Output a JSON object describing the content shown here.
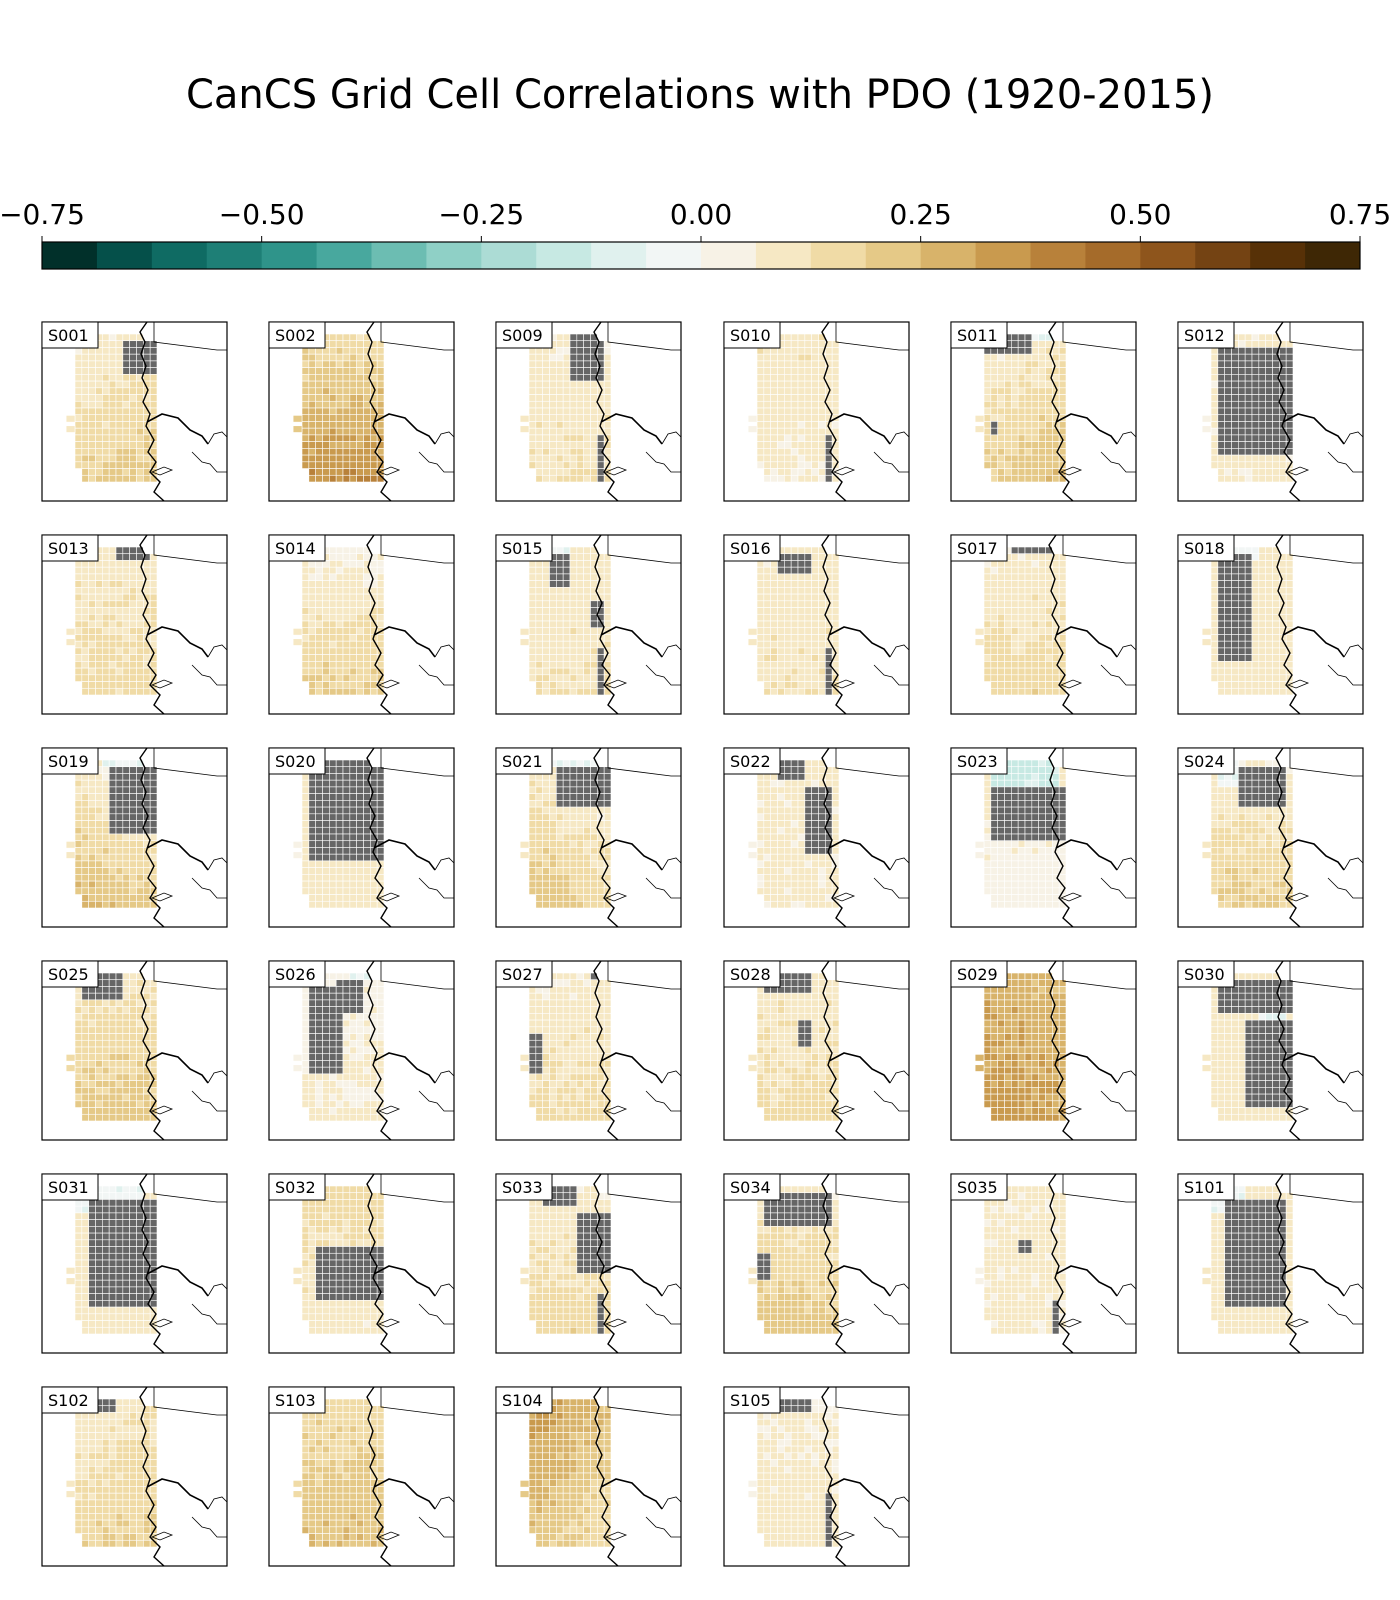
{
  "chart_data": {
    "type": "heatmap",
    "title": "CanCS Grid Cell Correlations with PDO (1920-2015)",
    "colorbar": {
      "ticks": [
        "−0.75",
        "−0.50",
        "−0.25",
        "0.00",
        "0.25",
        "0.50",
        "0.75"
      ],
      "range": [
        -0.75,
        0.75
      ],
      "colors": [
        "#01302a",
        "#05504a",
        "#0f6b63",
        "#1e7f76",
        "#2f948a",
        "#48a89e",
        "#6cbdb2",
        "#8fd0c6",
        "#acdcd5",
        "#c7e9e3",
        "#e0f1ee",
        "#f2f6f5",
        "#f7f2e6",
        "#f6e8c4",
        "#f0dba6",
        "#e5c987",
        "#d8b36a",
        "#c99a4e",
        "#b8813a",
        "#a56b2a",
        "#8e551c",
        "#744313",
        "#573107",
        "#3e2705"
      ],
      "not_significant_color": "#666666"
    },
    "panels": [
      {
        "label": "S001",
        "mean": 0.14,
        "lat_grad": 0.06,
        "lon_grad": 0.02,
        "masks": [
          [
            0.8,
            0.85,
            0.22,
            0.12
          ]
        ]
      },
      {
        "label": "S002",
        "mean": 0.26,
        "lat_grad": 0.12,
        "lon_grad": 0.0,
        "masks": []
      },
      {
        "label": "S009",
        "mean": 0.1,
        "lat_grad": 0.03,
        "lon_grad": 0.0,
        "masks": [
          [
            0.72,
            0.87,
            0.22,
            0.2
          ],
          [
            0.88,
            0.12,
            0.05,
            0.18
          ]
        ]
      },
      {
        "label": "S010",
        "mean": 0.09,
        "lat_grad": -0.02,
        "lon_grad": 0.0,
        "masks": [
          [
            0.88,
            0.12,
            0.05,
            0.18
          ]
        ]
      },
      {
        "label": "S011",
        "mean": 0.15,
        "lat_grad": 0.08,
        "lon_grad": 0.03,
        "masks": [
          [
            0.3,
            0.92,
            0.3,
            0.06
          ],
          [
            0.1,
            0.35,
            0.05,
            0.05
          ]
        ],
        "neg": [
          [
            0.55,
            0.98,
            0.35,
            0.04,
            -0.06
          ]
        ]
      },
      {
        "label": "S012",
        "mean": 0.08,
        "lat_grad": 0.0,
        "lon_grad": 0.0,
        "masks": [
          [
            0.55,
            0.55,
            0.45,
            0.35
          ]
        ]
      },
      {
        "label": "S013",
        "mean": 0.12,
        "lat_grad": 0.03,
        "lon_grad": 0.0,
        "masks": [
          [
            0.7,
            0.97,
            0.18,
            0.04
          ]
        ]
      },
      {
        "label": "S014",
        "mean": 0.12,
        "lat_grad": 0.08,
        "lon_grad": 0.0,
        "masks": []
      },
      {
        "label": "S015",
        "mean": 0.1,
        "lat_grad": 0.02,
        "lon_grad": 0.0,
        "masks": [
          [
            0.35,
            0.85,
            0.12,
            0.1
          ],
          [
            0.85,
            0.55,
            0.1,
            0.08
          ],
          [
            0.88,
            0.12,
            0.05,
            0.18
          ]
        ],
        "neg": [
          [
            0.35,
            0.98,
            0.12,
            0.04,
            -0.05
          ]
        ]
      },
      {
        "label": "S016",
        "mean": 0.1,
        "lat_grad": 0.02,
        "lon_grad": 0.0,
        "masks": [
          [
            0.45,
            0.9,
            0.2,
            0.06
          ],
          [
            0.88,
            0.12,
            0.05,
            0.18
          ]
        ]
      },
      {
        "label": "S017",
        "mean": 0.12,
        "lat_grad": 0.05,
        "lon_grad": 0.0,
        "masks": [
          [
            0.6,
            0.97,
            0.3,
            0.03
          ]
        ]
      },
      {
        "label": "S018",
        "mean": 0.1,
        "lat_grad": 0.0,
        "lon_grad": 0.0,
        "masks": [
          [
            0.3,
            0.6,
            0.2,
            0.35
          ]
        ],
        "neg": [
          [
            0.3,
            0.98,
            0.25,
            0.05,
            -0.05
          ]
        ]
      },
      {
        "label": "S019",
        "mean": 0.14,
        "lat_grad": 0.1,
        "lon_grad": -0.04,
        "masks": [
          [
            0.75,
            0.72,
            0.35,
            0.22
          ]
        ],
        "neg": [
          [
            0.6,
            0.98,
            0.3,
            0.04,
            -0.05
          ]
        ]
      },
      {
        "label": "S020",
        "mean": 0.09,
        "lat_grad": 0.0,
        "lon_grad": 0.0,
        "masks": [
          [
            0.55,
            0.68,
            0.45,
            0.35
          ]
        ]
      },
      {
        "label": "S021",
        "mean": 0.13,
        "lat_grad": 0.08,
        "lon_grad": -0.04,
        "masks": [
          [
            0.75,
            0.82,
            0.4,
            0.14
          ]
        ],
        "neg": [
          [
            0.5,
            0.98,
            0.45,
            0.04,
            -0.05
          ]
        ]
      },
      {
        "label": "S022",
        "mean": 0.08,
        "lat_grad": 0.0,
        "lon_grad": 0.0,
        "masks": [
          [
            0.75,
            0.6,
            0.2,
            0.22
          ],
          [
            0.4,
            0.92,
            0.15,
            0.06
          ]
        ]
      },
      {
        "label": "S023",
        "mean": 0.06,
        "lat_grad": -0.04,
        "lon_grad": 0.0,
        "masks": [
          [
            0.55,
            0.65,
            0.45,
            0.18
          ]
        ],
        "neg": [
          [
            0.5,
            0.88,
            0.42,
            0.1,
            -0.14
          ]
        ]
      },
      {
        "label": "S024",
        "mean": 0.13,
        "lat_grad": 0.07,
        "lon_grad": 0.0,
        "masks": [
          [
            0.65,
            0.82,
            0.3,
            0.14
          ]
        ],
        "neg": [
          [
            0.2,
            0.92,
            0.15,
            0.08,
            -0.05
          ]
        ]
      },
      {
        "label": "S025",
        "mean": 0.16,
        "lat_grad": 0.06,
        "lon_grad": 0.0,
        "masks": [
          [
            0.35,
            0.9,
            0.25,
            0.08
          ]
        ]
      },
      {
        "label": "S026",
        "mean": 0.06,
        "lat_grad": 0.02,
        "lon_grad": 0.0,
        "masks": [
          [
            0.3,
            0.6,
            0.2,
            0.3
          ],
          [
            0.6,
            0.85,
            0.15,
            0.1
          ]
        ],
        "neg": [
          [
            0.75,
            0.98,
            0.2,
            0.04,
            -0.05
          ]
        ]
      },
      {
        "label": "S027",
        "mean": 0.11,
        "lat_grad": 0.04,
        "lon_grad": 0.0,
        "masks": [
          [
            0.1,
            0.45,
            0.06,
            0.12
          ],
          [
            0.85,
            0.97,
            0.12,
            0.03
          ]
        ]
      },
      {
        "label": "S028",
        "mean": 0.12,
        "lat_grad": 0.03,
        "lon_grad": 0.0,
        "masks": [
          [
            0.35,
            0.92,
            0.3,
            0.06
          ],
          [
            0.6,
            0.6,
            0.08,
            0.08
          ]
        ],
        "neg": [
          [
            0.2,
            0.98,
            0.12,
            0.04,
            -0.05
          ]
        ]
      },
      {
        "label": "S029",
        "mean": 0.3,
        "lat_grad": 0.03,
        "lon_grad": -0.02,
        "masks": []
      },
      {
        "label": "S030",
        "mean": 0.1,
        "lat_grad": 0.0,
        "lon_grad": 0.0,
        "masks": [
          [
            0.55,
            0.85,
            0.45,
            0.12
          ],
          [
            0.7,
            0.4,
            0.3,
            0.3
          ]
        ],
        "neg": [
          [
            0.75,
            0.6,
            0.2,
            0.18,
            -0.06
          ]
        ]
      },
      {
        "label": "S031",
        "mean": 0.1,
        "lat_grad": 0.0,
        "lon_grad": 0.0,
        "masks": [
          [
            0.6,
            0.55,
            0.4,
            0.35
          ]
        ],
        "neg": [
          [
            0.4,
            0.92,
            0.4,
            0.08,
            -0.05
          ]
        ]
      },
      {
        "label": "S032",
        "mean": 0.12,
        "lat_grad": -0.04,
        "lon_grad": 0.0,
        "masks": [
          [
            0.6,
            0.42,
            0.45,
            0.18
          ]
        ]
      },
      {
        "label": "S033",
        "mean": 0.12,
        "lat_grad": 0.05,
        "lon_grad": 0.0,
        "masks": [
          [
            0.35,
            0.92,
            0.2,
            0.06
          ],
          [
            0.8,
            0.6,
            0.18,
            0.2
          ],
          [
            0.88,
            0.12,
            0.05,
            0.15
          ]
        ]
      },
      {
        "label": "S034",
        "mean": 0.15,
        "lat_grad": 0.08,
        "lon_grad": 0.0,
        "masks": [
          [
            0.5,
            0.85,
            0.4,
            0.12
          ],
          [
            0.12,
            0.45,
            0.08,
            0.08
          ]
        ]
      },
      {
        "label": "S035",
        "mean": 0.08,
        "lat_grad": 0.0,
        "lon_grad": 0.0,
        "masks": [
          [
            0.5,
            0.6,
            0.1,
            0.05
          ],
          [
            0.88,
            0.12,
            0.05,
            0.12
          ]
        ]
      },
      {
        "label": "S101",
        "mean": 0.1,
        "lat_grad": 0.0,
        "lon_grad": 0.0,
        "masks": [
          [
            0.55,
            0.55,
            0.4,
            0.38
          ]
        ],
        "neg": [
          [
            0.2,
            0.9,
            0.18,
            0.1,
            -0.05
          ]
        ]
      },
      {
        "label": "S102",
        "mean": 0.14,
        "lat_grad": 0.05,
        "lon_grad": 0.02,
        "masks": [
          [
            0.3,
            0.95,
            0.2,
            0.05
          ]
        ]
      },
      {
        "label": "S103",
        "mean": 0.2,
        "lat_grad": 0.05,
        "lon_grad": 0.0,
        "masks": []
      },
      {
        "label": "S104",
        "mean": 0.24,
        "lat_grad": -0.06,
        "lon_grad": -0.05,
        "masks": []
      },
      {
        "label": "S105",
        "mean": 0.08,
        "lat_grad": 0.02,
        "lon_grad": 0.0,
        "masks": [
          [
            0.45,
            0.95,
            0.18,
            0.05
          ],
          [
            0.88,
            0.15,
            0.05,
            0.2
          ]
        ]
      }
    ]
  }
}
